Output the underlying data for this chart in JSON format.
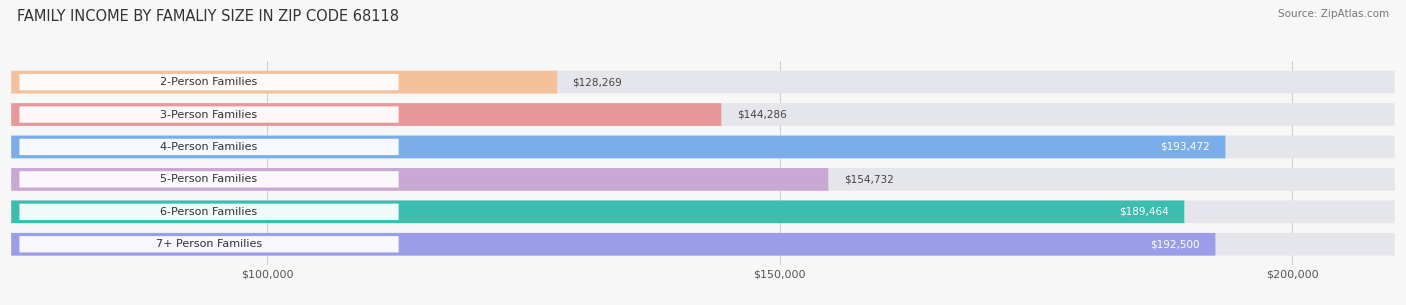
{
  "title": "FAMILY INCOME BY FAMALIY SIZE IN ZIP CODE 68118",
  "source": "Source: ZipAtlas.com",
  "categories": [
    "2-Person Families",
    "3-Person Families",
    "4-Person Families",
    "5-Person Families",
    "6-Person Families",
    "7+ Person Families"
  ],
  "values": [
    128269,
    144286,
    193472,
    154732,
    189464,
    192500
  ],
  "bar_colors": [
    "#f5c19a",
    "#e89898",
    "#7baee8",
    "#c9a8d4",
    "#3dbdb0",
    "#9b9de8"
  ],
  "label_colors": [
    "#444444",
    "#444444",
    "#ffffff",
    "#444444",
    "#ffffff",
    "#ffffff"
  ],
  "xmin": 75000,
  "xmax": 210000,
  "xticks": [
    100000,
    150000,
    200000
  ],
  "xtick_labels": [
    "$100,000",
    "$150,000",
    "$200,000"
  ],
  "bg_color": "#f7f7f7",
  "bar_bg_color": "#e5e5ec",
  "title_fontsize": 10.5,
  "label_fontsize": 8.0,
  "value_fontsize": 7.5,
  "source_fontsize": 7.5
}
